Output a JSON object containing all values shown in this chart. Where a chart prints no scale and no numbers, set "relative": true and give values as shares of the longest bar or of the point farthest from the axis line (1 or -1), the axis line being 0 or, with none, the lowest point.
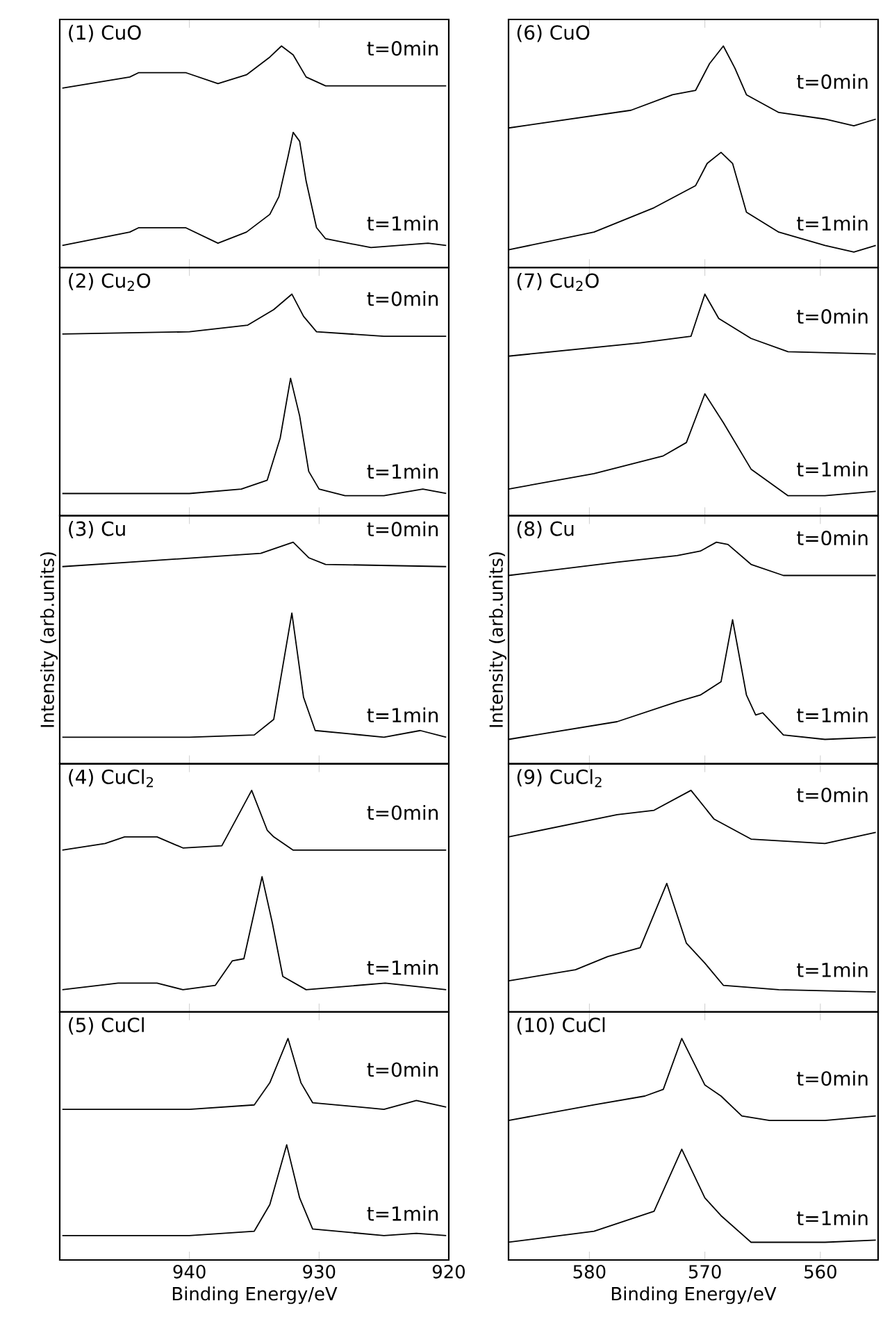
{
  "chart_data": [
    {
      "type": "line",
      "relative": true,
      "title": "(1) CuO",
      "xlim": [
        950,
        920
      ],
      "xticks": [
        940,
        930,
        920
      ],
      "tick_labels": false,
      "series": [
        {
          "name": "t=0min",
          "color": "#000000",
          "x": [
            949.8,
            944.6,
            943.9,
            940.3,
            937.8,
            935.6,
            933.8,
            932.9,
            932.0,
            931.0,
            929.5,
            926.0,
            920.2
          ],
          "values": [
            0.81,
            0.86,
            0.88,
            0.88,
            0.83,
            0.87,
            0.95,
            1.0,
            0.96,
            0.86,
            0.82,
            0.82,
            0.82
          ]
        },
        {
          "name": "t=1min",
          "color": "#000000",
          "x": [
            949.8,
            944.6,
            943.9,
            940.3,
            937.8,
            935.6,
            933.8,
            933.1,
            932.4,
            932.0,
            931.5,
            931.0,
            930.2,
            929.5,
            926.0,
            921.6,
            920.2
          ],
          "values": [
            0.1,
            0.16,
            0.18,
            0.18,
            0.11,
            0.16,
            0.24,
            0.32,
            0.5,
            0.61,
            0.57,
            0.39,
            0.18,
            0.13,
            0.09,
            0.11,
            0.1
          ]
        }
      ]
    },
    {
      "type": "line",
      "relative": true,
      "title": "(2) Cu$_{2}$O",
      "xlim": [
        950,
        920
      ],
      "xticks": [
        940,
        930,
        920
      ],
      "tick_labels": false,
      "series": [
        {
          "name": "t=0min",
          "color": "#000000",
          "x": [
            949.8,
            940,
            935.5,
            933.5,
            932.1,
            931.2,
            930.2,
            925,
            920.2
          ],
          "values": [
            0.82,
            0.83,
            0.86,
            0.93,
            1.0,
            0.9,
            0.83,
            0.81,
            0.81
          ]
        },
        {
          "name": "t=1min",
          "color": "#000000",
          "x": [
            949.8,
            945,
            940,
            936,
            934,
            933,
            932.2,
            931.5,
            930.8,
            930,
            928,
            925,
            922,
            920.2
          ],
          "values": [
            0.1,
            0.1,
            0.1,
            0.12,
            0.16,
            0.35,
            0.62,
            0.45,
            0.2,
            0.12,
            0.09,
            0.09,
            0.12,
            0.1
          ]
        }
      ]
    },
    {
      "type": "line",
      "relative": true,
      "title": "(3) Cu",
      "ylabel": "Intensity (arb.units)",
      "xlim": [
        950,
        920
      ],
      "xticks": [
        940,
        930,
        920
      ],
      "tick_labels": false,
      "series": [
        {
          "name": "t=0min",
          "color": "#000000",
          "x": [
            949.8,
            944.6,
            934.5,
            932.0,
            930.8,
            929.5,
            920.2
          ],
          "values": [
            0.89,
            0.91,
            0.95,
            1.0,
            0.93,
            0.9,
            0.89
          ]
        },
        {
          "name": "t=1min",
          "color": "#000000",
          "x": [
            949.8,
            940,
            935,
            933.5,
            932.1,
            931.2,
            930.3,
            925,
            922.2,
            920.2
          ],
          "values": [
            0.12,
            0.12,
            0.13,
            0.2,
            0.68,
            0.3,
            0.15,
            0.12,
            0.15,
            0.12
          ]
        }
      ]
    },
    {
      "type": "line",
      "relative": true,
      "title": "(4) CuCl$_{2}$",
      "xlim": [
        950,
        920
      ],
      "xticks": [
        940,
        930,
        920
      ],
      "tick_labels": false,
      "series": [
        {
          "name": "t=0min",
          "color": "#000000",
          "x": [
            949.8,
            946.5,
            945,
            942.5,
            940.5,
            937.5,
            936.3,
            935.2,
            934,
            933.5,
            932,
            925,
            920.2
          ],
          "values": [
            0.73,
            0.76,
            0.79,
            0.79,
            0.74,
            0.75,
            0.88,
            1.0,
            0.82,
            0.79,
            0.73,
            0.73,
            0.73
          ]
        },
        {
          "name": "t=1min",
          "color": "#000000",
          "x": [
            949.8,
            945.5,
            942.5,
            940.5,
            938,
            936.7,
            935.8,
            935,
            934.4,
            933.6,
            932.8,
            931,
            924.9,
            920.2
          ],
          "values": [
            0.1,
            0.13,
            0.13,
            0.1,
            0.12,
            0.23,
            0.24,
            0.45,
            0.61,
            0.4,
            0.16,
            0.1,
            0.13,
            0.1
          ]
        }
      ]
    },
    {
      "type": "line",
      "relative": true,
      "title": "(5) CuCl",
      "xlabel": "Binding Energy/eV",
      "xlim": [
        950,
        920
      ],
      "xticks": [
        940,
        930,
        920
      ],
      "tick_labels": "x",
      "series": [
        {
          "name": "t=0min",
          "color": "#000000",
          "x": [
            949.8,
            940,
            935,
            933.8,
            932.4,
            931.4,
            930.5,
            925,
            922.5,
            920.2
          ],
          "values": [
            0.68,
            0.68,
            0.7,
            0.8,
            1.0,
            0.8,
            0.71,
            0.68,
            0.72,
            0.69
          ]
        },
        {
          "name": "t=1min",
          "color": "#000000",
          "x": [
            949.8,
            940,
            935,
            933.8,
            932.5,
            931.5,
            930.5,
            925,
            922.5,
            920.2
          ],
          "values": [
            0.11,
            0.11,
            0.13,
            0.25,
            0.52,
            0.28,
            0.14,
            0.11,
            0.12,
            0.11
          ]
        }
      ]
    },
    {
      "type": "line",
      "relative": true,
      "title": "(6) CuO",
      "xlim": [
        587,
        555
      ],
      "xticks": [
        580,
        570,
        560
      ],
      "tick_labels": false,
      "series": [
        {
          "name": "t=0min",
          "color": "#000000",
          "x": [
            587.0,
            576.4,
            572.8,
            570.8,
            569.6,
            568.4,
            567.4,
            566.4,
            563.6,
            559.6,
            557.1,
            555.2
          ],
          "values": [
            0.63,
            0.71,
            0.78,
            0.8,
            0.92,
            1.0,
            0.9,
            0.78,
            0.7,
            0.67,
            0.64,
            0.67
          ]
        },
        {
          "name": "t=1min",
          "color": "#000000",
          "x": [
            587.0,
            579.6,
            574.4,
            570.8,
            569.8,
            568.6,
            567.6,
            566.4,
            563.6,
            559.6,
            557.1,
            555.2
          ],
          "values": [
            0.08,
            0.16,
            0.27,
            0.37,
            0.47,
            0.52,
            0.47,
            0.25,
            0.16,
            0.1,
            0.07,
            0.1
          ]
        }
      ]
    },
    {
      "type": "line",
      "relative": true,
      "title": "(7) Cu$_{2}$O",
      "xlim": [
        587,
        555
      ],
      "xticks": [
        580,
        570,
        560
      ],
      "tick_labels": false,
      "series": [
        {
          "name": "t=0min",
          "color": "#000000",
          "x": [
            587.0,
            575.6,
            571.2,
            570.0,
            568.8,
            566.0,
            562.8,
            555.2
          ],
          "values": [
            0.72,
            0.78,
            0.81,
            1.0,
            0.89,
            0.8,
            0.74,
            0.73
          ]
        },
        {
          "name": "t=1min",
          "color": "#000000",
          "x": [
            587.0,
            579.6,
            573.6,
            571.6,
            570.0,
            568.4,
            566.0,
            562.8,
            559.6,
            555.2
          ],
          "values": [
            0.12,
            0.19,
            0.27,
            0.33,
            0.55,
            0.42,
            0.21,
            0.09,
            0.09,
            0.11
          ]
        }
      ]
    },
    {
      "type": "line",
      "relative": true,
      "title": "(8) Cu",
      "ylabel": "Intensity (arb.units)",
      "xlim": [
        587,
        555
      ],
      "xticks": [
        580,
        570,
        560
      ],
      "tick_labels": false,
      "series": [
        {
          "name": "t=0min",
          "color": "#000000",
          "x": [
            587.0,
            577.6,
            572.4,
            570.4,
            569.0,
            568.0,
            566.0,
            563.2,
            555.2
          ],
          "values": [
            0.85,
            0.91,
            0.94,
            0.96,
            1.0,
            0.99,
            0.9,
            0.85,
            0.85
          ]
        },
        {
          "name": "t=1min",
          "color": "#000000",
          "x": [
            587.0,
            577.6,
            572.4,
            570.4,
            568.6,
            567.6,
            566.4,
            565.6,
            565.0,
            563.2,
            559.6,
            555.2
          ],
          "values": [
            0.11,
            0.19,
            0.28,
            0.31,
            0.37,
            0.65,
            0.31,
            0.22,
            0.23,
            0.13,
            0.11,
            0.12
          ]
        }
      ]
    },
    {
      "type": "line",
      "relative": true,
      "title": "(9) CuCl$_{2}$",
      "xlim": [
        587,
        555
      ],
      "xticks": [
        580,
        570,
        560
      ],
      "tick_labels": false,
      "series": [
        {
          "name": "t=0min",
          "color": "#000000",
          "x": [
            587.0,
            577.6,
            574.4,
            571.2,
            569.2,
            566.0,
            559.6,
            555.2
          ],
          "values": [
            0.79,
            0.89,
            0.91,
            1.0,
            0.87,
            0.78,
            0.76,
            0.81
          ]
        },
        {
          "name": "t=1min",
          "color": "#000000",
          "x": [
            587.0,
            581.2,
            578.4,
            575.6,
            573.3,
            571.6,
            570.0,
            568.4,
            563.6,
            555.2
          ],
          "values": [
            0.14,
            0.19,
            0.25,
            0.29,
            0.58,
            0.31,
            0.22,
            0.12,
            0.1,
            0.09
          ]
        }
      ]
    },
    {
      "type": "line",
      "relative": true,
      "title": "(10) CuCl",
      "xlabel": "Binding Energy/eV",
      "xlim": [
        587,
        555
      ],
      "xticks": [
        580,
        570,
        560
      ],
      "tick_labels": "x",
      "series": [
        {
          "name": "t=0min",
          "color": "#000000",
          "x": [
            587.0,
            579.6,
            575.2,
            573.6,
            572.0,
            570.0,
            568.6,
            566.8,
            564.4,
            559.6,
            555.2
          ],
          "values": [
            0.63,
            0.7,
            0.74,
            0.77,
            1.0,
            0.79,
            0.74,
            0.65,
            0.63,
            0.63,
            0.65
          ]
        },
        {
          "name": "t=1min",
          "color": "#000000",
          "x": [
            587.0,
            579.6,
            574.4,
            572.0,
            570.0,
            568.6,
            566.0,
            564.4,
            559.6,
            555.2
          ],
          "values": [
            0.08,
            0.13,
            0.22,
            0.5,
            0.28,
            0.2,
            0.08,
            0.08,
            0.08,
            0.09
          ]
        }
      ]
    }
  ]
}
